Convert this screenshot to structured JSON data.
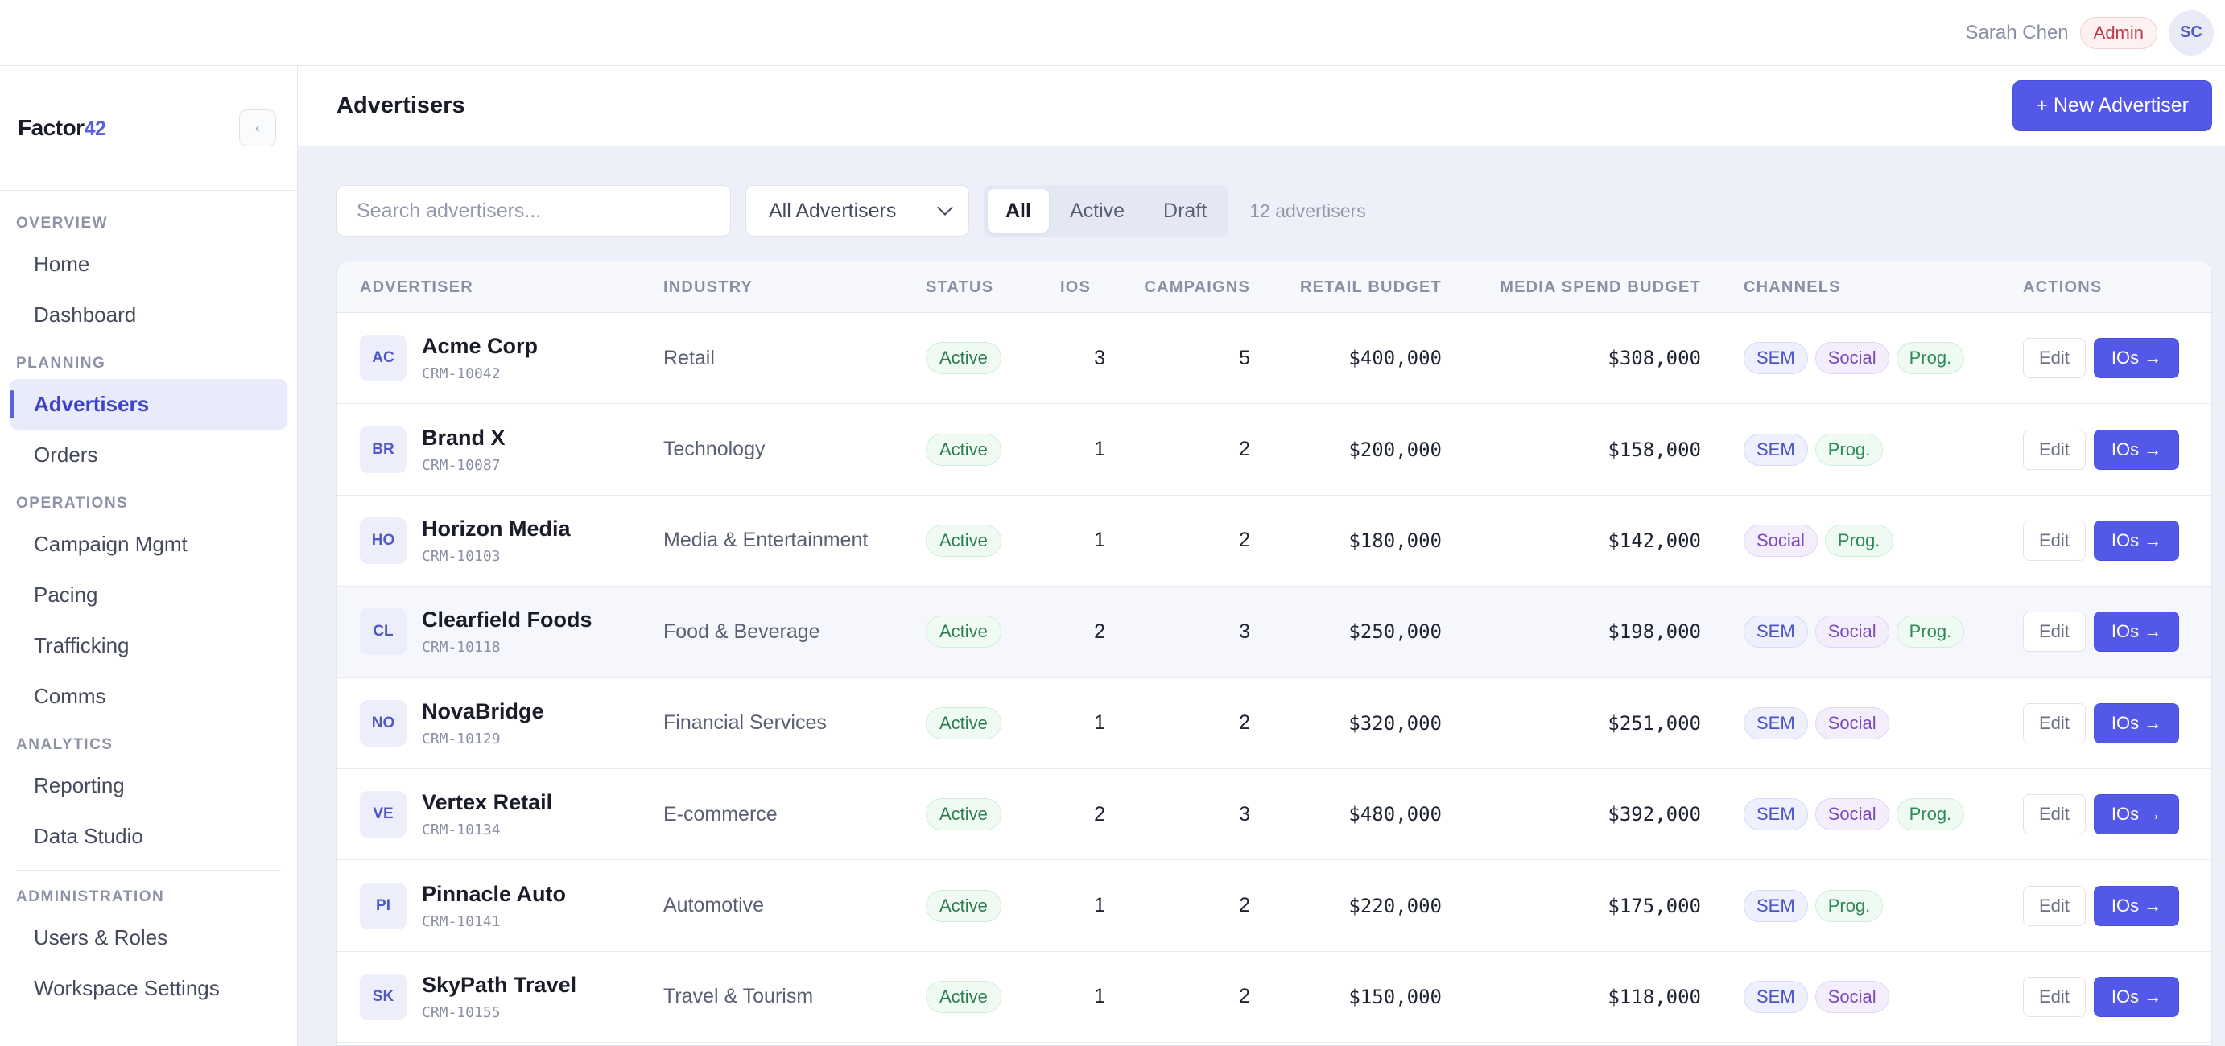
{
  "topbar": {
    "user_name": "Sarah Chen",
    "role": "Admin",
    "avatar_initials": "SC"
  },
  "sidebar": {
    "logo_text": "Factor",
    "logo_number": "42",
    "collapse_icon": "‹",
    "sections": [
      {
        "title": "OVERVIEW",
        "items": [
          {
            "label": "Home"
          },
          {
            "label": "Dashboard"
          }
        ]
      },
      {
        "title": "PLANNING",
        "items": [
          {
            "label": "Advertisers",
            "active": true
          },
          {
            "label": "Orders"
          }
        ]
      },
      {
        "title": "OPERATIONS",
        "items": [
          {
            "label": "Campaign Mgmt"
          },
          {
            "label": "Pacing"
          },
          {
            "label": "Trafficking"
          },
          {
            "label": "Comms"
          }
        ]
      },
      {
        "title": "ANALYTICS",
        "items": [
          {
            "label": "Reporting"
          },
          {
            "label": "Data Studio"
          }
        ]
      },
      {
        "title": "ADMINISTRATION",
        "items": [
          {
            "label": "Users & Roles"
          },
          {
            "label": "Workspace Settings"
          }
        ]
      }
    ]
  },
  "header": {
    "title": "Advertisers",
    "new_button": "+ New Advertiser"
  },
  "filters": {
    "search_placeholder": "Search advertisers...",
    "select_value": "All Advertisers",
    "segments": [
      "All",
      "Active",
      "Draft"
    ],
    "active_segment": "All",
    "count": "12 advertisers"
  },
  "table": {
    "columns": [
      "ADVERTISER",
      "INDUSTRY",
      "STATUS",
      "IOS",
      "CAMPAIGNS",
      "RETAIL BUDGET",
      "MEDIA SPEND BUDGET",
      "CHANNELS",
      "ACTIONS"
    ],
    "edit_label": "Edit",
    "ios_label": "IOs →",
    "rows": [
      {
        "initials": "AC",
        "name": "Acme Corp",
        "crm": "CRM-10042",
        "industry": "Retail",
        "status": "Active",
        "ios": "3",
        "campaigns": "5",
        "retail": "$400,000",
        "media": "$308,000",
        "channels": [
          "SEM",
          "Social",
          "Prog."
        ]
      },
      {
        "initials": "BR",
        "name": "Brand X",
        "crm": "CRM-10087",
        "industry": "Technology",
        "status": "Active",
        "ios": "1",
        "campaigns": "2",
        "retail": "$200,000",
        "media": "$158,000",
        "channels": [
          "SEM",
          "Prog."
        ]
      },
      {
        "initials": "HO",
        "name": "Horizon Media",
        "crm": "CRM-10103",
        "industry": "Media & Entertainment",
        "status": "Active",
        "ios": "1",
        "campaigns": "2",
        "retail": "$180,000",
        "media": "$142,000",
        "channels": [
          "Social",
          "Prog."
        ]
      },
      {
        "initials": "CL",
        "name": "Clearfield Foods",
        "crm": "CRM-10118",
        "industry": "Food & Beverage",
        "status": "Active",
        "ios": "2",
        "campaigns": "3",
        "retail": "$250,000",
        "media": "$198,000",
        "channels": [
          "SEM",
          "Social",
          "Prog."
        ],
        "hover": true
      },
      {
        "initials": "NO",
        "name": "NovaBridge",
        "crm": "CRM-10129",
        "industry": "Financial Services",
        "status": "Active",
        "ios": "1",
        "campaigns": "2",
        "retail": "$320,000",
        "media": "$251,000",
        "channels": [
          "SEM",
          "Social"
        ]
      },
      {
        "initials": "VE",
        "name": "Vertex Retail",
        "crm": "CRM-10134",
        "industry": "E-commerce",
        "status": "Active",
        "ios": "2",
        "campaigns": "3",
        "retail": "$480,000",
        "media": "$392,000",
        "channels": [
          "SEM",
          "Social",
          "Prog."
        ]
      },
      {
        "initials": "PI",
        "name": "Pinnacle Auto",
        "crm": "CRM-10141",
        "industry": "Automotive",
        "status": "Active",
        "ios": "1",
        "campaigns": "2",
        "retail": "$220,000",
        "media": "$175,000",
        "channels": [
          "SEM",
          "Prog."
        ]
      },
      {
        "initials": "SK",
        "name": "SkyPath Travel",
        "crm": "CRM-10155",
        "industry": "Travel & Tourism",
        "status": "Active",
        "ios": "1",
        "campaigns": "2",
        "retail": "$150,000",
        "media": "$118,000",
        "channels": [
          "SEM",
          "Social"
        ]
      }
    ]
  }
}
